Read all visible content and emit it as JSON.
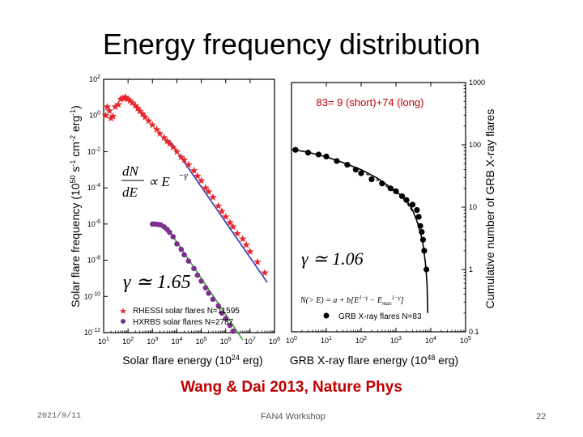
{
  "slide": {
    "title": "Energy frequency distribution",
    "citation": "Wang & Dai 2013, Nature Phys",
    "date": "2021/9/11",
    "event": "FAN4 Workshop",
    "page": "22"
  },
  "colors": {
    "citation": "#c00000",
    "rhessi": "#e8272b",
    "hxrbs": "#7b2f8e",
    "fit_blue": "#2b3fc0",
    "fit_green": "#3aa23a",
    "grb": "#000000"
  },
  "chart_data": [
    {
      "type": "scatter",
      "panel": "left",
      "x_scale": "log",
      "y_scale": "log",
      "xlabel": "Solar flare energy (10^24 erg)",
      "ylabel": "Solar flare frequency (10^50 s^-1 cm^-2 erg^-1)",
      "xlim": [
        10,
        100000000
      ],
      "ylim": [
        1e-12,
        100
      ],
      "x_ticks": [
        {
          "value": 10,
          "base": "10",
          "exp": "1"
        },
        {
          "value": 100,
          "base": "10",
          "exp": "2"
        },
        {
          "value": 1000,
          "base": "10",
          "exp": "3"
        },
        {
          "value": 10000,
          "base": "10",
          "exp": "4"
        },
        {
          "value": 100000,
          "base": "10",
          "exp": "5"
        },
        {
          "value": 1000000,
          "base": "10",
          "exp": "6"
        },
        {
          "value": 10000000,
          "base": "10",
          "exp": "7"
        },
        {
          "value": 100000000,
          "base": "10",
          "exp": "8"
        }
      ],
      "y_ticks": [
        {
          "value": 100,
          "base": "10",
          "exp": "2"
        },
        {
          "value": 1,
          "base": "10",
          "exp": "0"
        },
        {
          "value": 0.01,
          "base": "10",
          "exp": "-2"
        },
        {
          "value": 0.0001,
          "base": "10",
          "exp": "-4"
        },
        {
          "value": 1e-06,
          "base": "10",
          "exp": "-6"
        },
        {
          "value": 1e-08,
          "base": "10",
          "exp": "-8"
        },
        {
          "value": 1e-10,
          "base": "10",
          "exp": "-10"
        },
        {
          "value": 1e-12,
          "base": "10",
          "exp": "-12"
        }
      ],
      "annotations": {
        "power_law": {
          "lhs_num": "dN",
          "lhs_den": "dE",
          "rhs": "∝ E",
          "rhs_exp": "−γ"
        },
        "gamma": "γ ≃ 1.65"
      },
      "series": [
        {
          "name": "RHESSI solar flares N=11595",
          "marker": "star",
          "color_key": "rhessi",
          "points": [
            [
              12,
              1
            ],
            [
              14,
              3
            ],
            [
              17,
              1.8
            ],
            [
              20,
              0.7
            ],
            [
              24,
              0.9
            ],
            [
              30,
              3
            ],
            [
              40,
              4
            ],
            [
              50,
              8
            ],
            [
              60,
              9
            ],
            [
              70,
              9
            ],
            [
              80,
              10
            ],
            [
              100,
              8
            ],
            [
              120,
              6.5
            ],
            [
              150,
              5
            ],
            [
              200,
              3.5
            ],
            [
              250,
              2.5
            ],
            [
              300,
              1.8
            ],
            [
              400,
              1.2
            ],
            [
              500,
              0.8
            ],
            [
              700,
              0.5
            ],
            [
              1000,
              0.3
            ],
            [
              1500,
              0.17
            ],
            [
              2000,
              0.1
            ],
            [
              3000,
              0.06
            ],
            [
              4000,
              0.038
            ],
            [
              5000,
              0.028
            ],
            [
              7000,
              0.018
            ],
            [
              10000,
              0.01
            ],
            [
              15000,
              0.005
            ],
            [
              20000,
              0.0035
            ],
            [
              30000,
              0.0019
            ],
            [
              50000,
              0.0009
            ],
            [
              70000,
              0.00045
            ],
            [
              100000,
              0.00025
            ],
            [
              150000,
              0.0001
            ],
            [
              200000,
              6e-05
            ],
            [
              300000,
              3e-05
            ],
            [
              500000,
              1e-05
            ],
            [
              700000,
              5e-06
            ],
            [
              1000000,
              2.5e-06
            ],
            [
              1500000,
              1.2e-06
            ],
            [
              2000000,
              7e-07
            ],
            [
              3000000,
              3e-07
            ],
            [
              5000000,
              1.5e-07
            ],
            [
              7000000,
              7e-08
            ],
            [
              10000000,
              3e-08
            ],
            [
              20000000,
              8e-09
            ],
            [
              40000000,
              2e-09
            ]
          ]
        },
        {
          "name": "HXRBS solar flares N=2787",
          "marker": "circle",
          "color_key": "hxrbs",
          "points": [
            [
              1000,
              1e-06
            ],
            [
              1300,
              1e-06
            ],
            [
              1700,
              9.5e-07
            ],
            [
              2200,
              9e-07
            ],
            [
              3000,
              7e-07
            ],
            [
              4000,
              5e-07
            ],
            [
              5000,
              3.5e-07
            ],
            [
              7000,
              2e-07
            ],
            [
              10000,
              8e-08
            ],
            [
              15000,
              4e-08
            ],
            [
              20000,
              2e-08
            ],
            [
              30000,
              9e-09
            ],
            [
              50000,
              3.5e-09
            ],
            [
              70000,
              1.5e-09
            ],
            [
              100000,
              7e-10
            ],
            [
              150000,
              3e-10
            ],
            [
              200000,
              1.5e-10
            ],
            [
              300000,
              7e-11
            ],
            [
              500000,
              3e-11
            ],
            [
              700000,
              1.2e-11
            ],
            [
              1000000,
              6e-12
            ],
            [
              1500000,
              2.5e-12
            ],
            [
              2000000,
              1.2e-12
            ],
            [
              3000000,
              6e-13
            ],
            [
              5000000,
              2.5e-13
            ]
          ]
        }
      ],
      "fits": [
        {
          "color_key": "fit_blue",
          "from": [
            5000,
            0.04
          ],
          "to": [
            50000000,
            6e-10
          ]
        },
        {
          "color_key": "fit_green",
          "from": [
            5000,
            4e-07
          ],
          "to": [
            5000000,
            4e-13
          ]
        }
      ]
    },
    {
      "type": "scatter",
      "panel": "right",
      "x_scale": "log",
      "y_scale": "log",
      "title": "83= 9 (short)+74 (long)",
      "xlabel": "GRB X-ray flare energy (10^48 erg)",
      "ylabel": "Cumulative number of GRB X-ray flares",
      "xlim": [
        1,
        100000
      ],
      "ylim": [
        0.1,
        1000
      ],
      "x_ticks": [
        {
          "value": 1,
          "base": "10",
          "exp": "0"
        },
        {
          "value": 10,
          "base": "10",
          "exp": "1"
        },
        {
          "value": 100,
          "base": "10",
          "exp": "2"
        },
        {
          "value": 1000,
          "base": "10",
          "exp": "3"
        },
        {
          "value": 10000,
          "base": "10",
          "exp": "4"
        },
        {
          "value": 100000,
          "base": "10",
          "exp": "5"
        }
      ],
      "y_ticks": [
        {
          "value": 1000,
          "label": "1000"
        },
        {
          "value": 100,
          "label": "100"
        },
        {
          "value": 10,
          "label": "10"
        },
        {
          "value": 1,
          "label": "1"
        },
        {
          "value": 0.1,
          "label": "0.1"
        }
      ],
      "annotations": {
        "gamma": "γ ≃ 1.06",
        "formula": "N(> E) = a + b[E^{1−γ} − E_max^{1−γ}]"
      },
      "series": [
        {
          "name": "GRB X-ray flares N=83",
          "marker": "circle",
          "color_key": "grb",
          "points": [
            [
              1.3,
              83
            ],
            [
              3,
              75
            ],
            [
              6,
              70
            ],
            [
              10,
              65
            ],
            [
              20,
              55
            ],
            [
              40,
              48
            ],
            [
              70,
              40
            ],
            [
              100,
              35
            ],
            [
              200,
              28
            ],
            [
              400,
              24
            ],
            [
              700,
              20
            ],
            [
              1000,
              18
            ],
            [
              1500,
              15
            ],
            [
              2000,
              13
            ],
            [
              3000,
              11
            ],
            [
              4000,
              9
            ],
            [
              4500,
              7
            ],
            [
              5000,
              5
            ],
            [
              5500,
              4
            ],
            [
              6000,
              3
            ],
            [
              6500,
              2
            ],
            [
              7500,
              1
            ]
          ]
        }
      ],
      "fit_curve": [
        [
          1,
          85
        ],
        [
          3,
          76
        ],
        [
          10,
          64
        ],
        [
          30,
          52
        ],
        [
          100,
          40
        ],
        [
          300,
          29
        ],
        [
          1000,
          18
        ],
        [
          2000,
          13
        ],
        [
          3000,
          9
        ],
        [
          4000,
          6
        ],
        [
          5000,
          4
        ],
        [
          6000,
          2.5
        ],
        [
          7000,
          1.3
        ],
        [
          7800,
          0.6
        ],
        [
          8200,
          0.2
        ]
      ],
      "dashed_curve": [
        [
          100,
          38
        ],
        [
          300,
          27
        ],
        [
          1000,
          17
        ],
        [
          2000,
          12
        ],
        [
          3000,
          8.5
        ]
      ]
    }
  ]
}
